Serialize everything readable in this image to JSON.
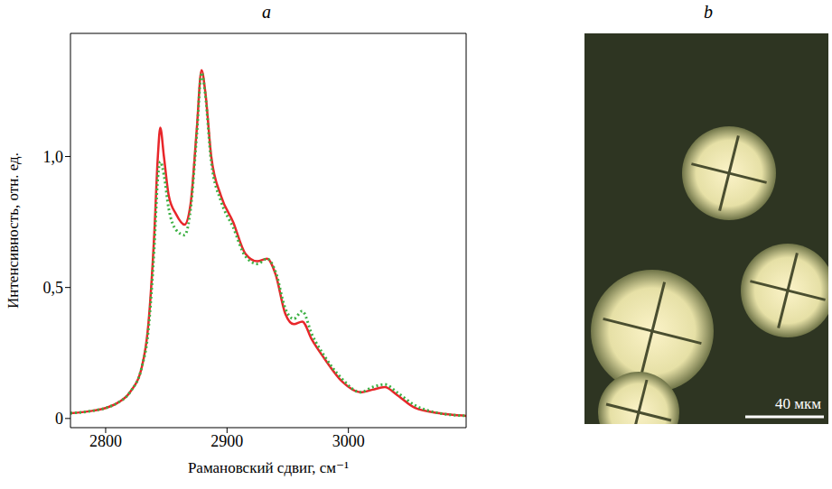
{
  "chart_data": {
    "type": "line",
    "title": "a",
    "x_label": "Рамановский сдвиг, см⁻¹",
    "y_label": "Интенсивность, отн. ед.",
    "x": [
      2771,
      2790,
      2800,
      2810,
      2820,
      2830,
      2835,
      2840,
      2843,
      2845,
      2848,
      2852,
      2858,
      2865,
      2870,
      2875,
      2879,
      2882,
      2887,
      2895,
      2905,
      2915,
      2925,
      2933,
      2940,
      2948,
      2955,
      2962,
      2970,
      2980,
      2995,
      3010,
      3020,
      3030,
      3040,
      3055,
      3075,
      3097
    ],
    "series": [
      {
        "color": "#e8262a",
        "line_style": "solid",
        "values": [
          0.02,
          0.03,
          0.04,
          0.06,
          0.1,
          0.2,
          0.35,
          0.7,
          1.0,
          1.11,
          1.0,
          0.85,
          0.78,
          0.74,
          0.82,
          1.1,
          1.33,
          1.25,
          1.0,
          0.85,
          0.75,
          0.63,
          0.6,
          0.61,
          0.55,
          0.4,
          0.36,
          0.37,
          0.3,
          0.23,
          0.14,
          0.1,
          0.11,
          0.12,
          0.09,
          0.04,
          0.02,
          0.01
        ]
      },
      {
        "color": "#3cb043",
        "line_style": "dotted",
        "values": [
          0.02,
          0.03,
          0.04,
          0.06,
          0.1,
          0.2,
          0.33,
          0.65,
          0.92,
          0.98,
          0.93,
          0.8,
          0.72,
          0.7,
          0.8,
          1.08,
          1.32,
          1.24,
          0.98,
          0.83,
          0.73,
          0.62,
          0.59,
          0.61,
          0.56,
          0.42,
          0.38,
          0.41,
          0.32,
          0.24,
          0.15,
          0.1,
          0.12,
          0.13,
          0.1,
          0.05,
          0.02,
          0.01
        ]
      }
    ],
    "xlim": [
      2771,
      3097
    ],
    "ylim": [
      -0.035,
      1.47
    ],
    "xticks": [
      2800,
      2900,
      3000
    ],
    "yticks": [
      0,
      {
        "value": 0.5,
        "label": "0,5"
      },
      {
        "value": 1,
        "label": "1,0"
      }
    ],
    "grid": false
  },
  "image_panel": {
    "title": "b",
    "scale_bar": "40 мкм"
  }
}
